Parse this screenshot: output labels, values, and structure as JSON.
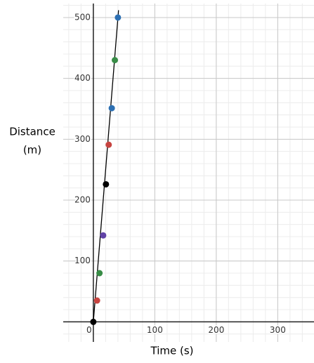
{
  "chart_data": {
    "type": "scatter",
    "xlabel": "Time (s)",
    "ylabel": [
      "Distance",
      "(m)"
    ],
    "x": [
      0,
      6,
      10,
      16,
      20.5,
      25,
      30,
      35,
      40
    ],
    "values": [
      0,
      35,
      80,
      142,
      226,
      291,
      351,
      430,
      500
    ],
    "colors": [
      "#000000",
      "#c74440",
      "#388c46",
      "#6042a6",
      "#000000",
      "#c74440",
      "#2d70b3",
      "#388c46",
      "#2d70b3"
    ],
    "line": {
      "x": [
        0,
        41
      ],
      "values": [
        0,
        512
      ],
      "color": "#000000"
    },
    "xlim": [
      -49,
      359
    ],
    "ylim": [
      -33,
      523
    ],
    "xticks": [
      0,
      100,
      200,
      300
    ],
    "yticks": [
      100,
      200,
      300,
      400,
      500
    ],
    "grid": true
  }
}
